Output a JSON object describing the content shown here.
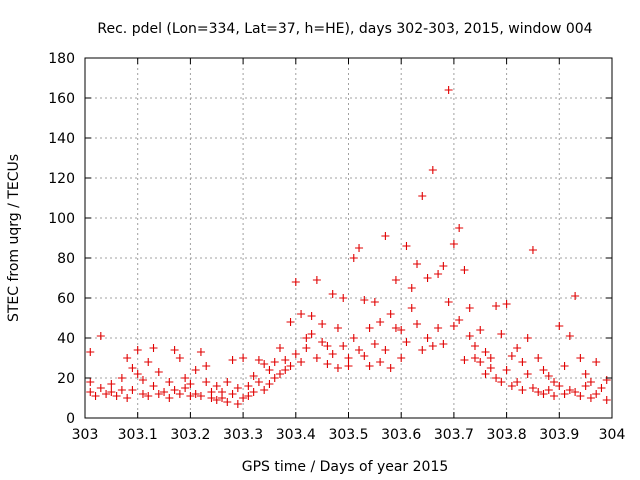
{
  "chart_data": {
    "type": "scatter",
    "title": "Rec. pdel (Lon=334, Lat=37, h=HE), days 302-303, 2015, window 004",
    "xlabel": "GPS time / Days of year 2015",
    "ylabel": "STEC from uqrg / TECUs",
    "xlim": [
      303,
      304
    ],
    "ylim": [
      0,
      180
    ],
    "x_ticks": [
      "303",
      "303.1",
      "303.2",
      "303.3",
      "303.4",
      "303.5",
      "303.6",
      "303.7",
      "303.8",
      "303.9",
      "304"
    ],
    "y_ticks": [
      "0",
      "20",
      "40",
      "60",
      "80",
      "100",
      "120",
      "140",
      "160",
      "180"
    ],
    "grid": true,
    "marker": "+",
    "color": "#e00000",
    "series": [
      {
        "name": "STEC",
        "points": [
          [
            303.01,
            33
          ],
          [
            303.03,
            41
          ],
          [
            303.01,
            18
          ],
          [
            303.01,
            13
          ],
          [
            303.02,
            11
          ],
          [
            303.03,
            15
          ],
          [
            303.04,
            12
          ],
          [
            303.05,
            13
          ],
          [
            303.05,
            17
          ],
          [
            303.06,
            11
          ],
          [
            303.07,
            20
          ],
          [
            303.07,
            14
          ],
          [
            303.08,
            30
          ],
          [
            303.08,
            10
          ],
          [
            303.09,
            25
          ],
          [
            303.09,
            14
          ],
          [
            303.1,
            34
          ],
          [
            303.1,
            22
          ],
          [
            303.11,
            12
          ],
          [
            303.11,
            19
          ],
          [
            303.12,
            28
          ],
          [
            303.12,
            11
          ],
          [
            303.13,
            35
          ],
          [
            303.13,
            16
          ],
          [
            303.14,
            23
          ],
          [
            303.14,
            12
          ],
          [
            303.15,
            13
          ],
          [
            303.16,
            18
          ],
          [
            303.16,
            10
          ],
          [
            303.17,
            34
          ],
          [
            303.17,
            14
          ],
          [
            303.18,
            30
          ],
          [
            303.18,
            12
          ],
          [
            303.19,
            20
          ],
          [
            303.19,
            15
          ],
          [
            303.2,
            11
          ],
          [
            303.2,
            17
          ],
          [
            303.21,
            24
          ],
          [
            303.21,
            12
          ],
          [
            303.22,
            33
          ],
          [
            303.22,
            11
          ],
          [
            303.23,
            26
          ],
          [
            303.23,
            18
          ],
          [
            303.24,
            13
          ],
          [
            303.24,
            10
          ],
          [
            303.25,
            16
          ],
          [
            303.25,
            9
          ],
          [
            303.26,
            13
          ],
          [
            303.26,
            10
          ],
          [
            303.27,
            18
          ],
          [
            303.27,
            8
          ],
          [
            303.28,
            29
          ],
          [
            303.28,
            12
          ],
          [
            303.29,
            15
          ],
          [
            303.29,
            7
          ],
          [
            303.3,
            30
          ],
          [
            303.3,
            10
          ],
          [
            303.31,
            16
          ],
          [
            303.31,
            11
          ],
          [
            303.32,
            21
          ],
          [
            303.32,
            13
          ],
          [
            303.33,
            29
          ],
          [
            303.33,
            18
          ],
          [
            303.34,
            27
          ],
          [
            303.34,
            14
          ],
          [
            303.35,
            24
          ],
          [
            303.35,
            17
          ],
          [
            303.36,
            28
          ],
          [
            303.36,
            20
          ],
          [
            303.37,
            35
          ],
          [
            303.37,
            22
          ],
          [
            303.38,
            29
          ],
          [
            303.38,
            24
          ],
          [
            303.39,
            48
          ],
          [
            303.39,
            26
          ],
          [
            303.4,
            68
          ],
          [
            303.4,
            32
          ],
          [
            303.41,
            52
          ],
          [
            303.41,
            28
          ],
          [
            303.42,
            40
          ],
          [
            303.42,
            35
          ],
          [
            303.43,
            51
          ],
          [
            303.43,
            42
          ],
          [
            303.44,
            69
          ],
          [
            303.44,
            30
          ],
          [
            303.45,
            47
          ],
          [
            303.45,
            38
          ],
          [
            303.46,
            36
          ],
          [
            303.46,
            27
          ],
          [
            303.47,
            62
          ],
          [
            303.47,
            32
          ],
          [
            303.48,
            45
          ],
          [
            303.48,
            25
          ],
          [
            303.49,
            60
          ],
          [
            303.49,
            36
          ],
          [
            303.5,
            26
          ],
          [
            303.5,
            30
          ],
          [
            303.51,
            80
          ],
          [
            303.51,
            40
          ],
          [
            303.52,
            85
          ],
          [
            303.52,
            34
          ],
          [
            303.53,
            59
          ],
          [
            303.53,
            31
          ],
          [
            303.54,
            45
          ],
          [
            303.54,
            26
          ],
          [
            303.55,
            58
          ],
          [
            303.55,
            37
          ],
          [
            303.56,
            48
          ],
          [
            303.56,
            28
          ],
          [
            303.57,
            91
          ],
          [
            303.57,
            34
          ],
          [
            303.58,
            52
          ],
          [
            303.58,
            25
          ],
          [
            303.59,
            69
          ],
          [
            303.59,
            45
          ],
          [
            303.6,
            44
          ],
          [
            303.6,
            30
          ],
          [
            303.61,
            86
          ],
          [
            303.61,
            38
          ],
          [
            303.62,
            65
          ],
          [
            303.62,
            55
          ],
          [
            303.63,
            77
          ],
          [
            303.63,
            47
          ],
          [
            303.64,
            111
          ],
          [
            303.64,
            34
          ],
          [
            303.65,
            70
          ],
          [
            303.65,
            40
          ],
          [
            303.66,
            124
          ],
          [
            303.66,
            36
          ],
          [
            303.67,
            72
          ],
          [
            303.67,
            45
          ],
          [
            303.68,
            76
          ],
          [
            303.68,
            37
          ],
          [
            303.69,
            164
          ],
          [
            303.69,
            58
          ],
          [
            303.7,
            87
          ],
          [
            303.7,
            46
          ],
          [
            303.71,
            95
          ],
          [
            303.71,
            49
          ],
          [
            303.72,
            74
          ],
          [
            303.72,
            29
          ],
          [
            303.73,
            55
          ],
          [
            303.73,
            41
          ],
          [
            303.74,
            30
          ],
          [
            303.74,
            36
          ],
          [
            303.75,
            44
          ],
          [
            303.75,
            28
          ],
          [
            303.76,
            33
          ],
          [
            303.76,
            22
          ],
          [
            303.77,
            30
          ],
          [
            303.77,
            25
          ],
          [
            303.78,
            56
          ],
          [
            303.78,
            20
          ],
          [
            303.79,
            42
          ],
          [
            303.79,
            18
          ],
          [
            303.8,
            57
          ],
          [
            303.8,
            24
          ],
          [
            303.81,
            31
          ],
          [
            303.81,
            16
          ],
          [
            303.82,
            35
          ],
          [
            303.82,
            18
          ],
          [
            303.83,
            28
          ],
          [
            303.83,
            14
          ],
          [
            303.84,
            40
          ],
          [
            303.84,
            22
          ],
          [
            303.85,
            84
          ],
          [
            303.85,
            15
          ],
          [
            303.86,
            30
          ],
          [
            303.86,
            13
          ],
          [
            303.87,
            24
          ],
          [
            303.87,
            12
          ],
          [
            303.88,
            21
          ],
          [
            303.88,
            14
          ],
          [
            303.89,
            18
          ],
          [
            303.89,
            11
          ],
          [
            303.9,
            46
          ],
          [
            303.9,
            16
          ],
          [
            303.91,
            26
          ],
          [
            303.91,
            12
          ],
          [
            303.92,
            41
          ],
          [
            303.92,
            14
          ],
          [
            303.93,
            61
          ],
          [
            303.93,
            13
          ],
          [
            303.94,
            30
          ],
          [
            303.94,
            11
          ],
          [
            303.95,
            22
          ],
          [
            303.95,
            16
          ],
          [
            303.96,
            18
          ],
          [
            303.96,
            10
          ],
          [
            303.97,
            28
          ],
          [
            303.97,
            12
          ],
          [
            303.98,
            15
          ],
          [
            303.99,
            19
          ],
          [
            303.99,
            9
          ]
        ]
      }
    ]
  }
}
